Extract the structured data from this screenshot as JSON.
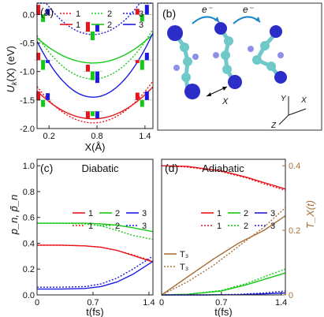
{
  "chart_data": [
    {
      "panel_label": "(a)",
      "type": "line",
      "title": "",
      "xlabel": "X(Å)",
      "ylabel": "U_k(X) (eV)",
      "ylabel_main": "U",
      "ylabel_sub": "k",
      "ylabel_rest": "(X) (eV)",
      "xlim": [
        0.05,
        1.5
      ],
      "ylim": [
        -2.0,
        0.2
      ],
      "xticks": [
        0.2,
        0.8,
        1.4
      ],
      "xtick_labels": [
        "0.2",
        "0.8",
        "1.4"
      ],
      "yticks": [
        0.0,
        -0.5,
        -1.0,
        -1.5,
        -2.0
      ],
      "ytick_labels": [
        "0.0",
        "-0.5",
        "-1.0",
        "-1.5",
        "-2.0"
      ],
      "legend": {
        "position": "top",
        "entries": [
          {
            "label": "1",
            "color": "#e8141c",
            "dash": "dotted"
          },
          {
            "label": "2",
            "color": "#16c816",
            "dash": "dotted"
          },
          {
            "label": "3",
            "color": "#1a1ae0",
            "dash": "dotted"
          },
          {
            "label": "1",
            "color": "#e8141c",
            "dash": "solid"
          },
          {
            "label": "2",
            "color": "#16c816",
            "dash": "solid"
          },
          {
            "label": "3",
            "color": "#1a1ae0",
            "dash": "solid"
          }
        ]
      },
      "series": [
        {
          "color": "#e8141c",
          "dash": "solid",
          "parabola": {
            "x0": 0.75,
            "y0": -1.83,
            "a": 1.0
          }
        },
        {
          "color": "#e8141c",
          "dash": "dotted",
          "parabola": {
            "x0": 0.75,
            "y0": -1.9,
            "a": 1.3
          }
        },
        {
          "color": "#16c816",
          "dash": "solid",
          "parabola": {
            "x0": 0.75,
            "y0": -0.85,
            "a": 0.9
          }
        },
        {
          "color": "#16c816",
          "dash": "dotted",
          "parabola": {
            "x0": 0.75,
            "y0": -1.13,
            "a": 1.55
          }
        },
        {
          "color": "#1a1ae0",
          "dash": "solid",
          "parabola": {
            "x0": 0.75,
            "y0": -1.45,
            "a": 2.0
          }
        },
        {
          "color": "#1a1ae0",
          "dash": "dotted",
          "parabola": {
            "x0": 0.75,
            "y0": -0.35,
            "a": 1.6
          }
        }
      ],
      "bar_groups": [
        {
          "x": 0.13,
          "base": 0.0,
          "values": [
            0.17,
            -0.13,
            0.1
          ]
        },
        {
          "x": 0.75,
          "base": -0.3,
          "values": [
            0.17,
            -0.15,
            0.13
          ]
        },
        {
          "x": 1.37,
          "base": 0.0,
          "values": [
            0.1,
            -0.12,
            0.17
          ]
        },
        {
          "x": 0.13,
          "base": -0.8,
          "values": [
            0.13,
            -0.17,
            -0.05
          ]
        },
        {
          "x": 0.75,
          "base": -1.0,
          "values": [
            0.12,
            -0.15,
            -0.2
          ]
        },
        {
          "x": 1.37,
          "base": -0.8,
          "values": [
            -0.05,
            -0.17,
            0.13
          ]
        },
        {
          "x": 0.13,
          "base": -1.5,
          "values": [
            0.15,
            -0.12,
            0.12
          ]
        },
        {
          "x": 0.75,
          "base": -1.7,
          "values": [
            -0.12,
            -0.08,
            -0.12
          ]
        },
        {
          "x": 1.37,
          "base": -1.5,
          "values": [
            0.13,
            -0.12,
            0.15
          ]
        }
      ]
    },
    {
      "panel_label": "(b)",
      "type": "illustration",
      "labels": {
        "electron": "e⁻",
        "x_arrow": "X",
        "axis_y": "Y",
        "axis_x": "X",
        "axis_z": "Z"
      }
    },
    {
      "panel_label": "(c)",
      "type": "line",
      "title": "Diabatic",
      "xlabel": "t(fs)",
      "ylabel": "p_n, p̃_n",
      "xlim": [
        0,
        1.45
      ],
      "ylim": [
        0,
        1.05
      ],
      "xticks": [
        0,
        0.7,
        1.4
      ],
      "xtick_labels": [
        "0",
        "0.7",
        "1.4"
      ],
      "yticks": [
        0.0,
        0.2,
        0.4,
        0.6,
        0.8,
        1.0
      ],
      "ytick_labels": [
        "0.0",
        "0.2",
        "0.4",
        "0.6",
        "0.8",
        "1.0"
      ],
      "legend": {
        "position": "center-right",
        "entries": [
          {
            "label": "1",
            "color": "#e8141c",
            "dash": "solid"
          },
          {
            "label": "2",
            "color": "#16c816",
            "dash": "solid"
          },
          {
            "label": "3",
            "color": "#1a1ae0",
            "dash": "solid"
          },
          {
            "label": "1",
            "color": "#e8141c",
            "dash": "dotted"
          },
          {
            "label": "2",
            "color": "#16c816",
            "dash": "dotted"
          },
          {
            "label": "3",
            "color": "#1a1ae0",
            "dash": "dotted"
          }
        ]
      },
      "series": [
        {
          "color": "#e8141c",
          "dash": "solid",
          "x": [
            0,
            0.3,
            0.6,
            0.8,
            1.0,
            1.2,
            1.45
          ],
          "y": [
            0.385,
            0.385,
            0.38,
            0.37,
            0.345,
            0.305,
            0.255
          ]
        },
        {
          "color": "#e8141c",
          "dash": "dotted",
          "x": [
            0,
            0.3,
            0.6,
            0.8,
            1.0,
            1.2,
            1.45
          ],
          "y": [
            0.385,
            0.385,
            0.38,
            0.368,
            0.345,
            0.31,
            0.26
          ]
        },
        {
          "color": "#16c816",
          "dash": "solid",
          "x": [
            0,
            0.3,
            0.6,
            0.8,
            1.0,
            1.2,
            1.45
          ],
          "y": [
            0.555,
            0.555,
            0.555,
            0.55,
            0.54,
            0.52,
            0.49
          ]
        },
        {
          "color": "#16c816",
          "dash": "dotted",
          "x": [
            0,
            0.3,
            0.6,
            0.8,
            1.0,
            1.2,
            1.45
          ],
          "y": [
            0.555,
            0.555,
            0.55,
            0.535,
            0.5,
            0.46,
            0.43
          ]
        },
        {
          "color": "#1a1ae0",
          "dash": "solid",
          "x": [
            0,
            0.3,
            0.6,
            0.8,
            1.0,
            1.2,
            1.45
          ],
          "y": [
            0.045,
            0.045,
            0.05,
            0.065,
            0.1,
            0.16,
            0.26
          ]
        },
        {
          "color": "#1a1ae0",
          "dash": "dotted",
          "x": [
            0,
            0.3,
            0.6,
            0.8,
            1.0,
            1.2,
            1.45
          ],
          "y": [
            0.06,
            0.06,
            0.065,
            0.085,
            0.13,
            0.2,
            0.3
          ]
        }
      ]
    },
    {
      "panel_label": "(d)",
      "type": "line",
      "title": "Adiabatic",
      "xlabel": "t(fs)",
      "ylabel_right": "T_X(t)",
      "xlim": [
        0,
        1.45
      ],
      "ylim": [
        0,
        1.05
      ],
      "right_ylim": [
        0,
        0.42
      ],
      "xticks": [
        0,
        0.7,
        1.4
      ],
      "xtick_labels": [
        "0",
        "0.7",
        "1.4"
      ],
      "right_yticks": [
        0,
        0.2,
        0.4
      ],
      "right_ytick_labels": [
        "0",
        "0.2",
        "0.4"
      ],
      "right_axis_color": "#a8703a",
      "legend": {
        "position": "center-right",
        "entries": [
          {
            "label": "1",
            "color": "#e8141c",
            "dash": "solid"
          },
          {
            "label": "2",
            "color": "#16c816",
            "dash": "solid"
          },
          {
            "label": "3",
            "color": "#1a1ae0",
            "dash": "solid"
          },
          {
            "label": "1",
            "color": "#e8141c",
            "dash": "dotted"
          },
          {
            "label": "2",
            "color": "#16c816",
            "dash": "dotted"
          },
          {
            "label": "3",
            "color": "#1a1ae0",
            "dash": "dotted"
          }
        ]
      },
      "legend2": {
        "position": "center-left",
        "entries": [
          {
            "label": "T₃",
            "color": "#a8703a",
            "dash": "solid"
          },
          {
            "label": "T₃",
            "color": "#a8703a",
            "dash": "dotted"
          }
        ]
      },
      "series": [
        {
          "color": "#e8141c",
          "dash": "solid",
          "axis": "left",
          "x": [
            0,
            0.3,
            0.7,
            1.0,
            1.2,
            1.45
          ],
          "y": [
            1.0,
            0.995,
            0.96,
            0.91,
            0.87,
            0.82
          ]
        },
        {
          "color": "#e8141c",
          "dash": "dotted",
          "axis": "left",
          "x": [
            0,
            0.3,
            0.7,
            1.0,
            1.2,
            1.45
          ],
          "y": [
            1.0,
            0.99,
            0.955,
            0.905,
            0.86,
            0.81
          ]
        },
        {
          "color": "#16c816",
          "dash": "solid",
          "axis": "left",
          "x": [
            0,
            0.3,
            0.7,
            1.0,
            1.2,
            1.45
          ],
          "y": [
            0.0,
            0.004,
            0.03,
            0.08,
            0.12,
            0.17
          ]
        },
        {
          "color": "#16c816",
          "dash": "dotted",
          "axis": "left",
          "x": [
            0,
            0.3,
            0.7,
            1.0,
            1.2,
            1.45
          ],
          "y": [
            0.0,
            0.005,
            0.035,
            0.09,
            0.14,
            0.2
          ]
        },
        {
          "color": "#1a1ae0",
          "dash": "solid",
          "axis": "left",
          "x": [
            0,
            0.5,
            0.9,
            1.2,
            1.45
          ],
          "y": [
            0.0,
            0.0,
            0.002,
            0.008,
            0.015
          ]
        },
        {
          "color": "#1a1ae0",
          "dash": "dotted",
          "axis": "left",
          "x": [
            0,
            0.5,
            0.9,
            1.2,
            1.45
          ],
          "y": [
            0.0,
            0.0,
            0.004,
            0.015,
            0.03
          ]
        },
        {
          "color": "#a8703a",
          "dash": "solid",
          "axis": "right",
          "x": [
            0,
            0.3,
            0.6,
            0.9,
            1.2,
            1.45
          ],
          "y": [
            0.0,
            0.055,
            0.11,
            0.16,
            0.2,
            0.245
          ]
        },
        {
          "color": "#a8703a",
          "dash": "dotted",
          "axis": "right",
          "x": [
            0,
            0.3,
            0.6,
            0.9,
            1.2,
            1.45
          ],
          "y": [
            0.0,
            0.04,
            0.09,
            0.15,
            0.21,
            0.27
          ]
        }
      ]
    }
  ]
}
